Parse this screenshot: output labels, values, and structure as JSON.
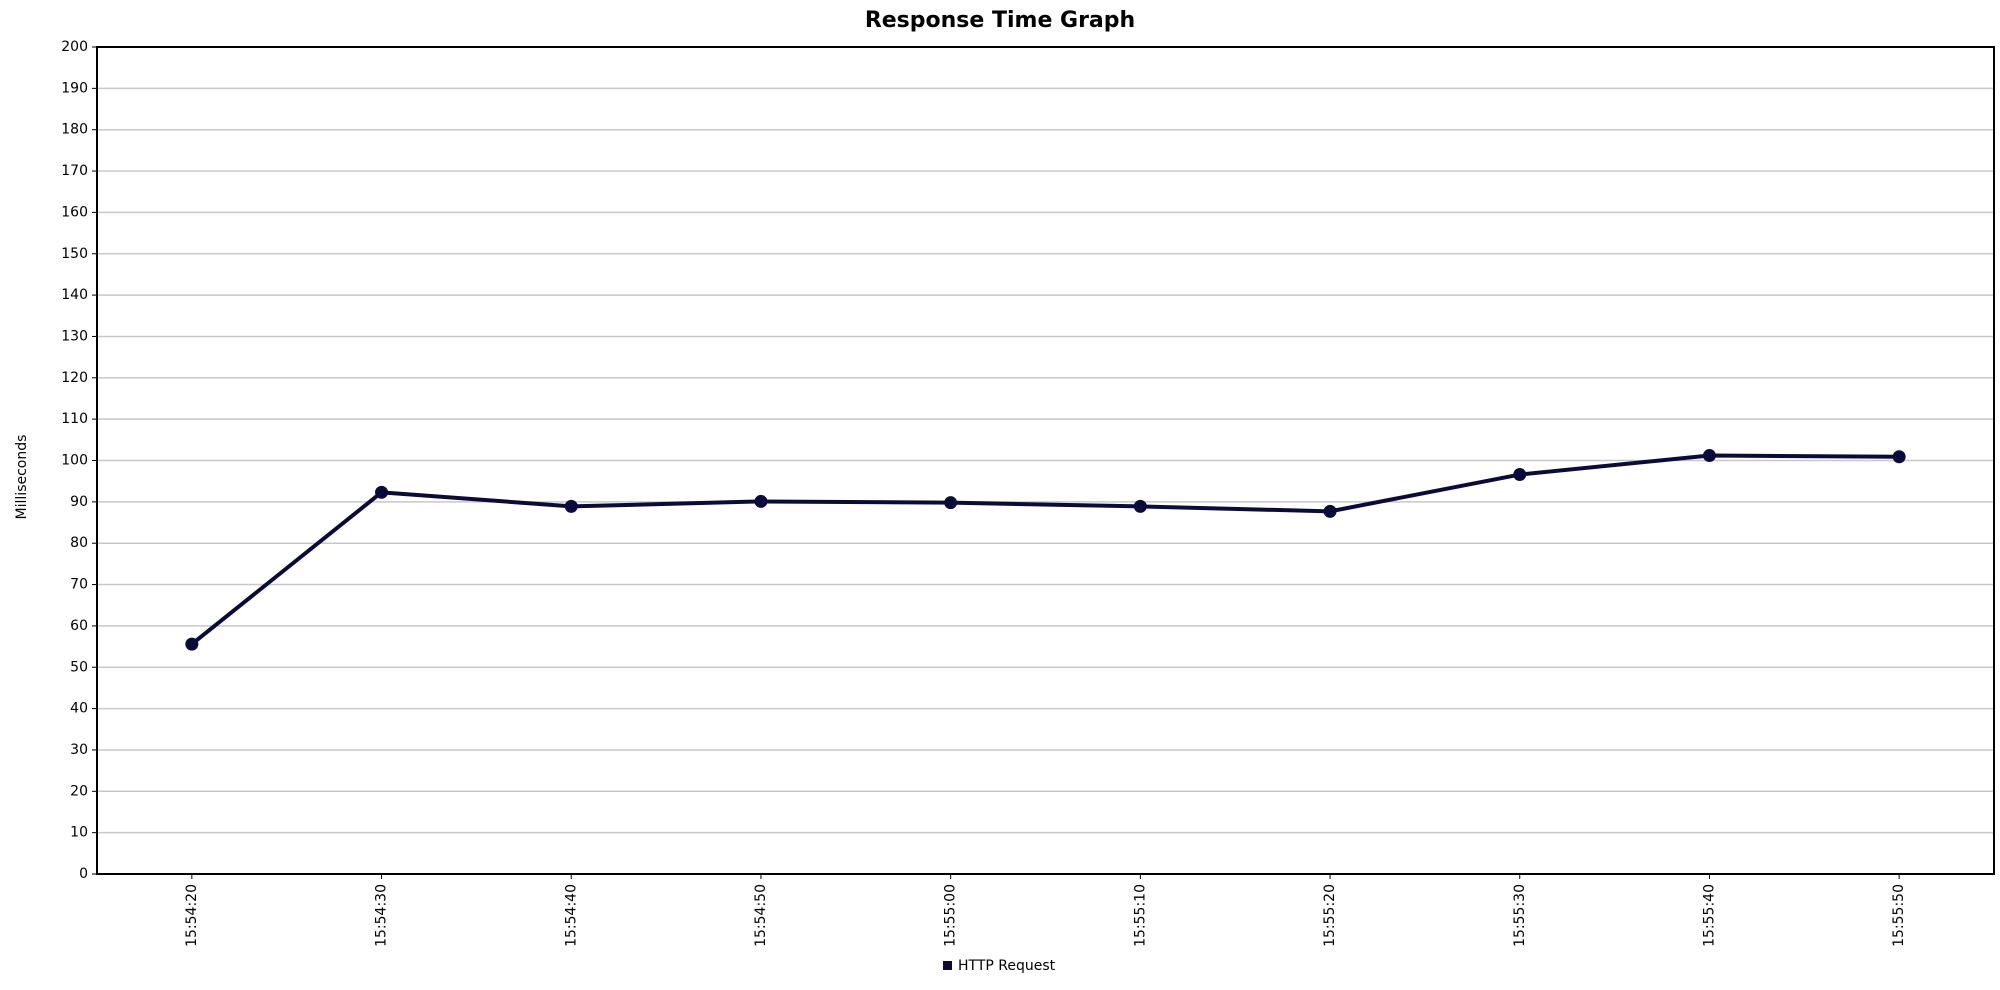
{
  "chart_data": {
    "type": "line",
    "title": "Response Time Graph",
    "y_label": "Milliseconds",
    "categories": [
      "15:54:20",
      "15:54:30",
      "15:54:40",
      "15:54:50",
      "15:55:00",
      "15:55:10",
      "15:55:20",
      "15:55:30",
      "15:55:40",
      "15:55:50"
    ],
    "series": [
      {
        "name": "HTTP Request",
        "color": "#0b0b3b",
        "values": [
          55.6,
          92.3,
          88.9,
          90.1,
          89.8,
          88.9,
          87.7,
          96.6,
          101.2,
          100.9
        ]
      }
    ],
    "ylim": [
      0,
      200
    ],
    "yticks": [
      0,
      10,
      20,
      30,
      40,
      50,
      60,
      70,
      80,
      90,
      100,
      110,
      120,
      130,
      140,
      150,
      160,
      170,
      180,
      190,
      200
    ],
    "grid": true
  }
}
